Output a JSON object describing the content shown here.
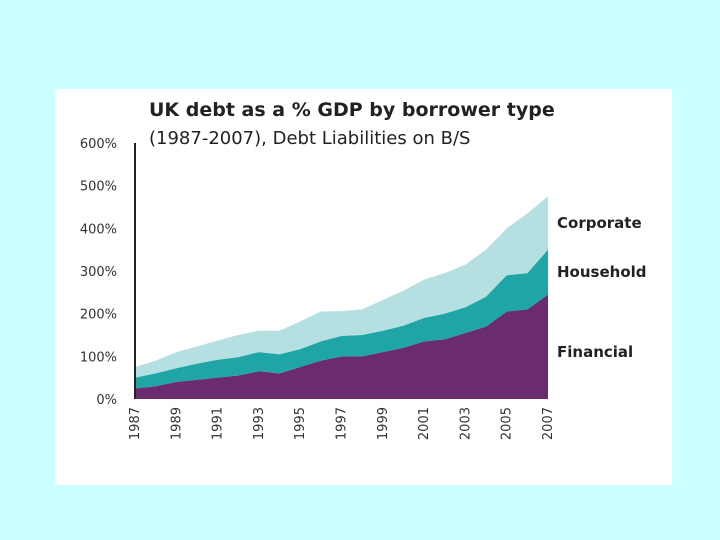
{
  "chart_data": {
    "type": "area",
    "stacked": true,
    "title": "UK debt as a % GDP  by borrower type",
    "subtitle": "(1987-2007), Debt Liabilities on B/S",
    "xlabel": "",
    "ylabel": "",
    "ylim": [
      0,
      600
    ],
    "yticks": [
      "600%",
      "500%",
      "400%",
      "300%",
      "200%",
      "100%",
      "0%"
    ],
    "ytick_values": [
      600,
      500,
      400,
      300,
      200,
      100,
      0
    ],
    "xticks": [
      "1987",
      "1989",
      "1991",
      "1993",
      "1995",
      "1997",
      "1999",
      "2001",
      "2003",
      "2005",
      "2007"
    ],
    "x": [
      1987,
      1988,
      1989,
      1990,
      1991,
      1992,
      1993,
      1994,
      1995,
      1996,
      1997,
      1998,
      1999,
      2000,
      2001,
      2002,
      2003,
      2004,
      2005,
      2006,
      2007
    ],
    "grid": false,
    "legend": "inline-right",
    "series": [
      {
        "name": "Financial",
        "color": "#6b2c6e",
        "values": [
          25,
          30,
          40,
          45,
          50,
          55,
          65,
          60,
          75,
          90,
          100,
          100,
          110,
          120,
          135,
          140,
          155,
          170,
          205,
          210,
          245
        ]
      },
      {
        "name": "Household",
        "color": "#1fa5a5",
        "values": [
          25,
          30,
          32,
          38,
          42,
          43,
          45,
          45,
          42,
          45,
          48,
          50,
          50,
          52,
          55,
          60,
          60,
          70,
          85,
          85,
          105
        ]
      },
      {
        "name": "Corporate",
        "color": "#b5e0e2",
        "values": [
          25,
          30,
          38,
          40,
          45,
          52,
          50,
          55,
          65,
          70,
          58,
          60,
          72,
          82,
          90,
          95,
          100,
          110,
          110,
          140,
          125
        ]
      }
    ]
  }
}
